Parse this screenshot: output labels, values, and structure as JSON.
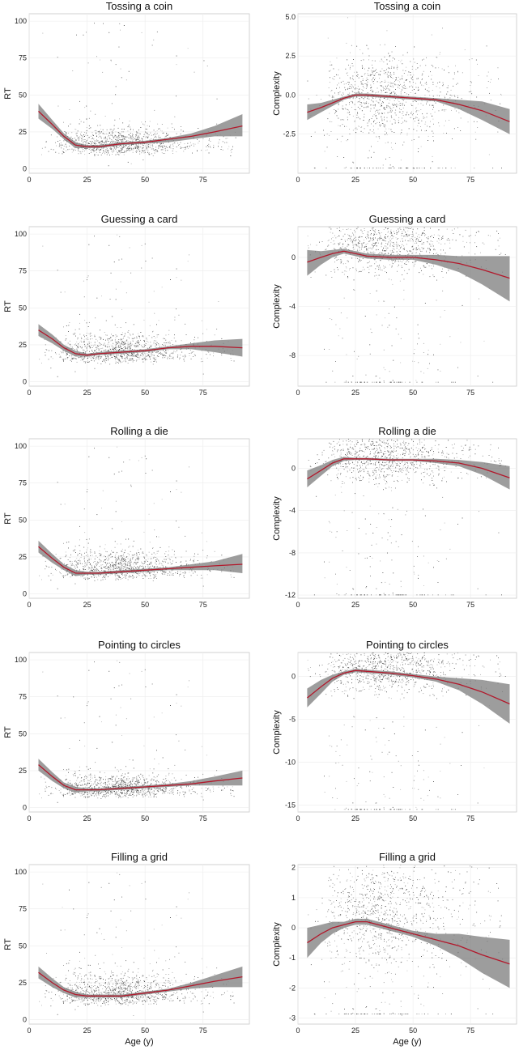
{
  "chart_data": [
    {
      "type": "scatter",
      "title": "Tossing a coin",
      "ylabel": "RT",
      "xlabel": "",
      "xlim": [
        0,
        95
      ],
      "ylim": [
        -3,
        105
      ],
      "xticks": [
        0,
        25,
        50,
        75
      ],
      "xtick_labels": [
        "0",
        "25",
        "50",
        "75"
      ],
      "yticks": [
        0,
        25,
        50,
        75,
        100
      ],
      "ytick_labels": [
        "0",
        "25",
        "50",
        "75",
        "100"
      ],
      "scatter": {
        "mode": "rt",
        "center": 15,
        "spread": 7
      },
      "series": [
        {
          "x": [
            4,
            10,
            15,
            20,
            25,
            30,
            35,
            40,
            50,
            60,
            70,
            80,
            92
          ],
          "y": [
            39,
            30,
            22,
            16,
            15,
            15,
            16,
            17,
            18,
            20,
            22,
            25,
            29
          ],
          "lower": [
            34,
            27,
            20,
            14,
            14,
            14,
            15,
            16,
            17,
            18,
            20,
            22,
            22
          ],
          "upper": [
            44,
            33,
            24,
            18,
            16,
            16,
            17,
            18,
            19,
            21,
            24,
            29,
            37
          ]
        }
      ]
    },
    {
      "type": "scatter",
      "title": "Tossing a coin",
      "ylabel": "Complexity",
      "xlabel": "",
      "xlim": [
        0,
        95
      ],
      "ylim": [
        -5,
        5.2
      ],
      "xticks": [
        0,
        25,
        50,
        75
      ],
      "xtick_labels": [
        "0",
        "25",
        "50",
        "75"
      ],
      "yticks": [
        -2.5,
        0,
        2.5,
        5
      ],
      "ytick_labels": [
        "-2.5",
        "0.0",
        "2.5",
        "5.0"
      ],
      "scatter": {
        "mode": "complexity",
        "center": 0,
        "spread": 1.3
      },
      "series": [
        {
          "x": [
            4,
            10,
            15,
            20,
            25,
            30,
            40,
            50,
            60,
            70,
            80,
            92
          ],
          "y": [
            -1.1,
            -0.8,
            -0.5,
            -0.2,
            0.0,
            0.0,
            -0.1,
            -0.2,
            -0.3,
            -0.6,
            -1.0,
            -1.7
          ],
          "lower": [
            -1.6,
            -1.1,
            -0.7,
            -0.3,
            -0.1,
            -0.1,
            -0.2,
            -0.3,
            -0.4,
            -0.9,
            -1.6,
            -2.5
          ],
          "upper": [
            -0.6,
            -0.5,
            -0.3,
            -0.1,
            0.1,
            0.1,
            0.0,
            -0.1,
            -0.2,
            -0.3,
            -0.4,
            -0.9
          ]
        }
      ]
    },
    {
      "type": "scatter",
      "title": "Guessing a card",
      "ylabel": "RT",
      "xlabel": "",
      "xlim": [
        0,
        95
      ],
      "ylim": [
        -3,
        105
      ],
      "xticks": [
        0,
        25,
        50,
        75
      ],
      "xtick_labels": [
        "0",
        "25",
        "50",
        "75"
      ],
      "yticks": [
        0,
        25,
        50,
        75,
        100
      ],
      "ytick_labels": [
        "0",
        "25",
        "50",
        "75",
        "100"
      ],
      "scatter": {
        "mode": "rt",
        "center": 18,
        "spread": 8
      },
      "series": [
        {
          "x": [
            4,
            10,
            15,
            20,
            25,
            30,
            40,
            50,
            60,
            70,
            80,
            92
          ],
          "y": [
            35,
            29,
            23,
            19,
            18,
            19,
            20,
            21,
            23,
            24,
            24,
            23
          ],
          "lower": [
            31,
            26,
            21,
            17,
            17,
            18,
            19,
            20,
            22,
            22,
            20,
            17
          ],
          "upper": [
            39,
            32,
            25,
            21,
            19,
            20,
            21,
            22,
            24,
            26,
            28,
            29
          ]
        }
      ]
    },
    {
      "type": "scatter",
      "title": "Guessing a card",
      "ylabel": "Complexity",
      "xlabel": "",
      "xlim": [
        0,
        95
      ],
      "ylim": [
        -10.5,
        2.5
      ],
      "xticks": [
        0,
        25,
        50,
        75
      ],
      "xtick_labels": [
        "0",
        "25",
        "50",
        "75"
      ],
      "yticks": [
        -8,
        -4,
        0
      ],
      "ytick_labels": [
        "-8",
        "-4",
        "0"
      ],
      "scatter": {
        "mode": "complexity",
        "center": 1,
        "spread": 1.2
      },
      "series": [
        {
          "x": [
            4,
            10,
            15,
            20,
            25,
            30,
            40,
            50,
            60,
            70,
            80,
            92
          ],
          "y": [
            -0.4,
            0.0,
            0.3,
            0.5,
            0.3,
            0.1,
            0.0,
            0.0,
            -0.2,
            -0.5,
            -1.0,
            -1.7
          ],
          "lower": [
            -1.5,
            -0.6,
            0.0,
            0.3,
            0.1,
            -0.1,
            -0.2,
            -0.2,
            -0.6,
            -1.2,
            -2.2,
            -3.6
          ],
          "upper": [
            0.6,
            0.5,
            0.6,
            0.7,
            0.5,
            0.3,
            0.2,
            0.2,
            0.2,
            0.1,
            0.1,
            0.1
          ]
        }
      ]
    },
    {
      "type": "scatter",
      "title": "Rolling a die",
      "ylabel": "RT",
      "xlabel": "",
      "xlim": [
        0,
        95
      ],
      "ylim": [
        -3,
        105
      ],
      "xticks": [
        0,
        25,
        50,
        75
      ],
      "xtick_labels": [
        "0",
        "25",
        "50",
        "75"
      ],
      "yticks": [
        0,
        25,
        50,
        75,
        100
      ],
      "ytick_labels": [
        "0",
        "25",
        "50",
        "75",
        "100"
      ],
      "scatter": {
        "mode": "rt",
        "center": 15,
        "spread": 8
      },
      "series": [
        {
          "x": [
            4,
            10,
            15,
            20,
            25,
            30,
            40,
            50,
            60,
            70,
            80,
            92
          ],
          "y": [
            32,
            24,
            18,
            14,
            14,
            14,
            15,
            16,
            17,
            18,
            19,
            20
          ],
          "lower": [
            28,
            21,
            16,
            12,
            13,
            13,
            14,
            15,
            16,
            16,
            16,
            14
          ],
          "upper": [
            36,
            27,
            20,
            16,
            15,
            15,
            16,
            17,
            18,
            20,
            22,
            27
          ]
        }
      ]
    },
    {
      "type": "scatter",
      "title": "Rolling a die",
      "ylabel": "Complexity",
      "xlabel": "",
      "xlim": [
        0,
        95
      ],
      "ylim": [
        -12.3,
        2.8
      ],
      "xticks": [
        0,
        25,
        50,
        75
      ],
      "xtick_labels": [
        "0",
        "25",
        "50",
        "75"
      ],
      "yticks": [
        -12,
        -8,
        -4,
        0
      ],
      "ytick_labels": [
        "-12",
        "-8",
        "-4",
        "0"
      ],
      "scatter": {
        "mode": "complexity",
        "center": 1,
        "spread": 1.2
      },
      "series": [
        {
          "x": [
            4,
            10,
            15,
            20,
            25,
            30,
            40,
            50,
            60,
            70,
            80,
            92
          ],
          "y": [
            -1.0,
            -0.2,
            0.5,
            0.9,
            0.9,
            0.9,
            0.8,
            0.8,
            0.7,
            0.5,
            0.0,
            -0.9
          ],
          "lower": [
            -1.8,
            -0.7,
            0.2,
            0.7,
            0.8,
            0.8,
            0.7,
            0.7,
            0.5,
            0.2,
            -0.6,
            -2.0
          ],
          "upper": [
            -0.2,
            0.3,
            0.8,
            1.1,
            1.0,
            1.0,
            0.9,
            0.9,
            0.9,
            0.8,
            0.6,
            0.2
          ]
        }
      ]
    },
    {
      "type": "scatter",
      "title": "Pointing to circles",
      "ylabel": "RT",
      "xlabel": "",
      "xlim": [
        0,
        95
      ],
      "ylim": [
        -3,
        105
      ],
      "xticks": [
        0,
        25,
        50,
        75
      ],
      "xtick_labels": [
        "0",
        "25",
        "50",
        "75"
      ],
      "yticks": [
        0,
        25,
        50,
        75,
        100
      ],
      "ytick_labels": [
        "0",
        "25",
        "50",
        "75",
        "100"
      ],
      "scatter": {
        "mode": "rt",
        "center": 12,
        "spread": 6
      },
      "series": [
        {
          "x": [
            4,
            10,
            15,
            20,
            25,
            30,
            40,
            50,
            60,
            70,
            80,
            92
          ],
          "y": [
            29,
            21,
            15,
            12,
            12,
            12,
            13,
            14,
            15,
            16,
            18,
            20
          ],
          "lower": [
            25,
            18,
            13,
            10,
            11,
            11,
            12,
            13,
            14,
            15,
            15,
            15
          ],
          "upper": [
            33,
            24,
            17,
            14,
            13,
            13,
            14,
            15,
            16,
            18,
            21,
            25
          ]
        }
      ]
    },
    {
      "type": "scatter",
      "title": "Pointing to circles",
      "ylabel": "Complexity",
      "xlabel": "",
      "xlim": [
        0,
        95
      ],
      "ylim": [
        -15.8,
        2.8
      ],
      "xticks": [
        0,
        25,
        50,
        75
      ],
      "xtick_labels": [
        "0",
        "25",
        "50",
        "75"
      ],
      "yticks": [
        -15,
        -10,
        -5,
        0
      ],
      "ytick_labels": [
        "-15",
        "-10",
        "-5",
        "0"
      ],
      "scatter": {
        "mode": "complexity",
        "center": 1,
        "spread": 1.5
      },
      "series": [
        {
          "x": [
            4,
            10,
            15,
            20,
            25,
            30,
            40,
            50,
            60,
            70,
            80,
            92
          ],
          "y": [
            -2.5,
            -1.2,
            -0.2,
            0.4,
            0.7,
            0.6,
            0.4,
            0.1,
            -0.3,
            -0.9,
            -1.8,
            -3.2
          ],
          "lower": [
            -3.6,
            -2.0,
            -0.6,
            0.2,
            0.5,
            0.4,
            0.2,
            -0.1,
            -0.6,
            -1.6,
            -3.2,
            -5.5
          ],
          "upper": [
            -1.4,
            -0.4,
            0.2,
            0.6,
            0.9,
            0.8,
            0.6,
            0.3,
            0.0,
            -0.2,
            -0.4,
            -0.9
          ]
        }
      ]
    },
    {
      "type": "scatter",
      "title": "Filling a grid",
      "ylabel": "RT",
      "xlabel": "Age (y)",
      "xlim": [
        0,
        95
      ],
      "ylim": [
        -3,
        105
      ],
      "xticks": [
        0,
        25,
        50,
        75
      ],
      "xtick_labels": [
        "0",
        "25",
        "50",
        "75"
      ],
      "yticks": [
        0,
        25,
        50,
        75,
        100
      ],
      "ytick_labels": [
        "0",
        "25",
        "50",
        "75",
        "100"
      ],
      "scatter": {
        "mode": "rt",
        "center": 15,
        "spread": 9
      },
      "series": [
        {
          "x": [
            4,
            10,
            15,
            20,
            25,
            30,
            40,
            50,
            60,
            70,
            80,
            92
          ],
          "y": [
            32,
            25,
            20,
            17,
            16,
            16,
            16,
            18,
            20,
            23,
            26,
            29
          ],
          "lower": [
            28,
            22,
            18,
            15,
            15,
            15,
            15,
            17,
            19,
            21,
            22,
            22
          ],
          "upper": [
            36,
            28,
            22,
            19,
            17,
            17,
            17,
            19,
            21,
            25,
            30,
            36
          ]
        }
      ]
    },
    {
      "type": "scatter",
      "title": "Filling a grid",
      "ylabel": "Complexity",
      "xlabel": "Age (y)",
      "xlim": [
        0,
        95
      ],
      "ylim": [
        -3.2,
        2.1
      ],
      "xticks": [
        0,
        25,
        50,
        75
      ],
      "xtick_labels": [
        "0",
        "25",
        "50",
        "75"
      ],
      "yticks": [
        -3,
        -2,
        -1,
        0,
        1,
        2
      ],
      "ytick_labels": [
        "-3",
        "-2",
        "-1",
        "0",
        "1",
        "2"
      ],
      "scatter": {
        "mode": "complexity",
        "center": 0.6,
        "spread": 0.9
      },
      "series": [
        {
          "x": [
            4,
            10,
            15,
            20,
            25,
            30,
            40,
            50,
            60,
            70,
            80,
            92
          ],
          "y": [
            -0.5,
            -0.2,
            0.0,
            0.1,
            0.2,
            0.2,
            0.0,
            -0.2,
            -0.4,
            -0.6,
            -0.9,
            -1.2
          ],
          "lower": [
            -1.0,
            -0.5,
            -0.2,
            0.0,
            0.1,
            0.1,
            -0.1,
            -0.3,
            -0.6,
            -1.0,
            -1.5,
            -2.0
          ],
          "upper": [
            0.0,
            0.1,
            0.2,
            0.2,
            0.3,
            0.3,
            0.1,
            -0.1,
            -0.2,
            -0.2,
            -0.3,
            -0.4
          ]
        }
      ]
    }
  ]
}
